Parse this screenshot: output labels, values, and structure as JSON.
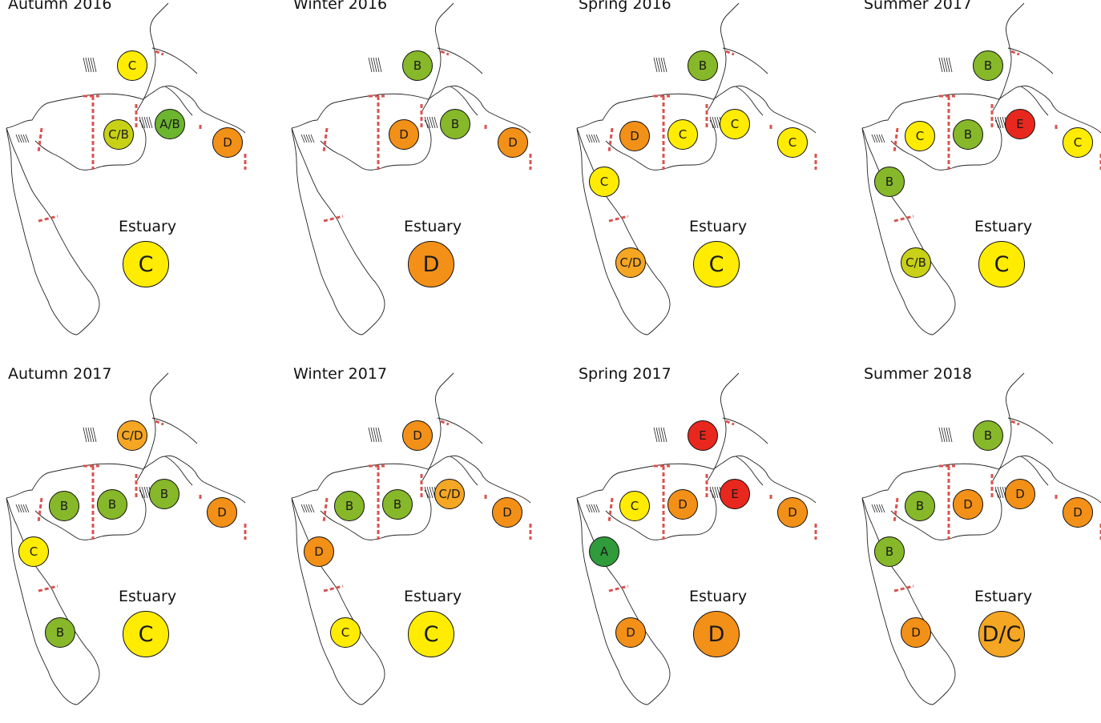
{
  "colors": {
    "A": "#2f9b3b",
    "A/B": "#6cb52f",
    "B": "#86b82a",
    "C/B": "#c8d115",
    "C": "#ffec00",
    "C/D": "#f5a623",
    "D/C": "#f5a623",
    "D": "#f39018",
    "E": "#e8281e",
    "boundary": "#d9534f",
    "outline": "#222222"
  },
  "estuary_label": "Estuary",
  "panels": [
    {
      "title": "Autumn 2016",
      "sites": {
        "n": "C",
        "w": null,
        "c": "C/B",
        "r": "A/B",
        "e": "D",
        "s1": null,
        "s2": null
      },
      "estuary": "C"
    },
    {
      "title": "Winter 2016",
      "sites": {
        "n": "B",
        "w": null,
        "c": "D",
        "r": "B",
        "e": "D",
        "s1": null,
        "s2": null
      },
      "estuary": "D"
    },
    {
      "title": "Spring 2016",
      "sites": {
        "n": "B",
        "w": "D",
        "c": "C",
        "r": "C",
        "e": "C",
        "s1": "C",
        "s2": "C/D"
      },
      "estuary": "C"
    },
    {
      "title": "Summer 2017",
      "sites": {
        "n": "B",
        "w": "C",
        "c": "B",
        "r": "E",
        "e": "C",
        "s1": "B",
        "s2": "C/B"
      },
      "estuary": "C"
    },
    {
      "title": "Autumn 2017",
      "sites": {
        "n": "C/D",
        "w": "B",
        "c": "B",
        "r": "B",
        "e": "D",
        "s1": "C",
        "s2": "B"
      },
      "estuary": "C"
    },
    {
      "title": "Winter 2017",
      "sites": {
        "n": "D",
        "w": "B",
        "c": "B",
        "r": "C/D",
        "e": "D",
        "s1": "D",
        "s2": "C"
      },
      "estuary": "C"
    },
    {
      "title": "Spring 2017",
      "sites": {
        "n": "E",
        "w": "C",
        "c": "D",
        "r": "E",
        "e": "D",
        "s1": "A",
        "s2": "D"
      },
      "estuary": "D"
    },
    {
      "title": "Summer 2018",
      "sites": {
        "n": "B",
        "w": "B",
        "c": "D",
        "r": "D",
        "e": "D",
        "s1": "B",
        "s2": "D"
      },
      "estuary": "D/C"
    }
  ]
}
